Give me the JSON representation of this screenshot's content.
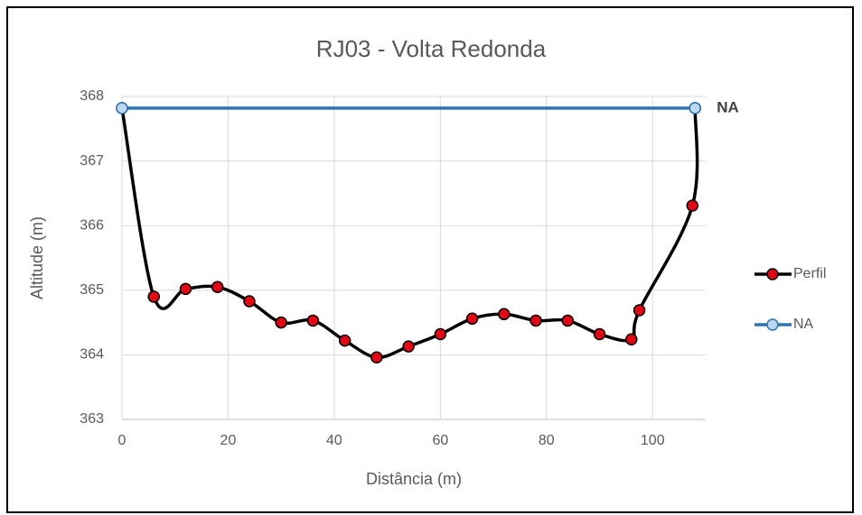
{
  "chart_data": {
    "type": "line",
    "title": "RJ03 - Volta Redonda",
    "xlabel": "Distância (m)",
    "ylabel": "Altitude (m)",
    "annotation": "NA",
    "xlim": [
      0,
      110
    ],
    "xticks": [
      0,
      20,
      40,
      60,
      80,
      100
    ],
    "ylim": [
      363,
      368
    ],
    "yticks": [
      363,
      364,
      365,
      366,
      367,
      368
    ],
    "grid": true,
    "smooth": true,
    "legend": "right",
    "series": [
      {
        "name": "Perfil",
        "color": "#000000",
        "marker_color": "#e30613",
        "x": [
          0,
          6,
          12,
          18,
          24,
          30,
          36,
          42,
          48,
          54,
          60,
          66,
          72,
          78,
          84,
          90,
          96,
          97.5,
          107.5,
          108
        ],
        "values": [
          367.82,
          364.9,
          365.02,
          365.05,
          364.83,
          364.5,
          364.53,
          364.22,
          363.96,
          364.13,
          364.32,
          364.56,
          364.63,
          364.53,
          364.53,
          364.32,
          364.24,
          364.69,
          366.31,
          367.82
        ]
      },
      {
        "name": "NA",
        "color": "#2e75b6",
        "marker_color": "#bdd7ee",
        "x": [
          0,
          108
        ],
        "values": [
          367.82,
          367.82
        ]
      }
    ]
  }
}
